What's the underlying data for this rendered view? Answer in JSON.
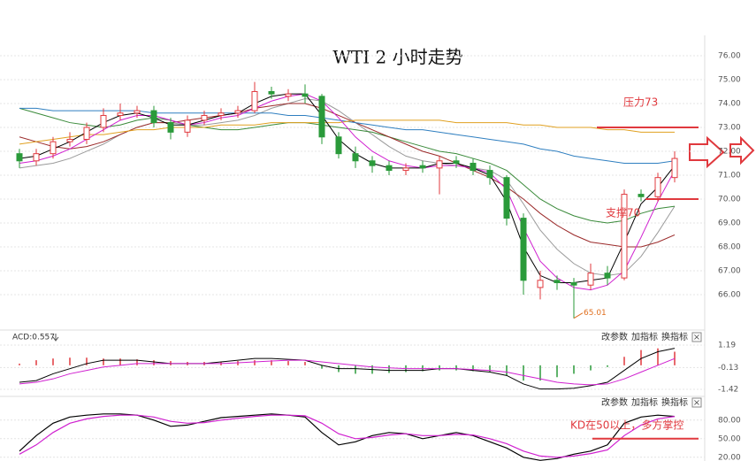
{
  "chart_data": [
    {
      "type": "candlestick",
      "title": "WTI 2 小时走势",
      "ylim": [
        64.63,
        76.85
      ],
      "yticks": [
        {
          "value": 66,
          "label": "66.00"
        },
        {
          "value": 67,
          "label": "67.00"
        },
        {
          "value": 68,
          "label": "68.00"
        },
        {
          "value": 69,
          "label": "69.00"
        },
        {
          "value": 70,
          "label": "70.00"
        },
        {
          "value": 71,
          "label": "71.00"
        },
        {
          "value": 72,
          "label": "72.00"
        },
        {
          "value": 73,
          "label": "73.00"
        },
        {
          "value": 74,
          "label": "74.00"
        },
        {
          "value": 75,
          "label": "75.00"
        },
        {
          "value": 76,
          "label": "76.00"
        }
      ],
      "grid": true,
      "up_color": "#e0393e",
      "down_color": "#2a9a3a",
      "open": [
        71.9,
        71.6,
        71.9,
        72.4,
        72.5,
        73.0,
        73.5,
        73.6,
        73.7,
        73.2,
        72.8,
        73.3,
        73.5,
        73.6,
        73.7,
        74.5,
        74.3,
        74.4,
        74.3,
        72.6,
        71.9,
        71.6,
        71.4,
        71.2,
        71.4,
        71.3,
        71.6,
        71.5,
        71.2,
        70.9,
        69.2,
        66.3,
        66.6,
        66.5,
        66.4,
        66.9,
        66.7,
        70.2,
        70.1,
        70.9
      ],
      "high": [
        72.1,
        72.1,
        72.6,
        72.8,
        73.2,
        73.8,
        74.0,
        73.9,
        73.9,
        73.4,
        73.5,
        73.7,
        73.8,
        73.9,
        74.9,
        74.7,
        74.6,
        74.8,
        74.4,
        72.8,
        72.2,
        71.8,
        71.6,
        71.5,
        71.6,
        71.8,
        71.8,
        71.7,
        71.4,
        71.0,
        69.4,
        67.0,
        66.8,
        66.7,
        67.3,
        67.2,
        70.4,
        70.4,
        71.1,
        72.0
      ],
      "low": [
        71.3,
        71.4,
        71.7,
        72.2,
        72.3,
        72.8,
        73.3,
        73.4,
        73.0,
        72.5,
        72.6,
        73.1,
        73.3,
        73.4,
        73.6,
        74.2,
        74.1,
        74.0,
        72.3,
        71.7,
        71.3,
        71.1,
        71.0,
        71.0,
        71.1,
        70.2,
        71.3,
        71.0,
        70.6,
        68.9,
        66.0,
        65.8,
        66.2,
        65.01,
        66.2,
        66.4,
        66.6,
        69.9,
        69.9,
        70.7
      ],
      "close": [
        71.6,
        71.9,
        72.4,
        72.5,
        73.0,
        73.5,
        73.6,
        73.7,
        73.2,
        72.8,
        73.3,
        73.5,
        73.6,
        73.7,
        74.5,
        74.4,
        74.4,
        74.3,
        72.6,
        71.9,
        71.6,
        71.4,
        71.2,
        71.3,
        71.3,
        71.6,
        71.5,
        71.2,
        70.9,
        69.2,
        66.6,
        66.6,
        66.5,
        66.4,
        66.9,
        66.7,
        70.2,
        70.1,
        70.9,
        71.7
      ],
      "lines": [
        {
          "color": "#9a9a9a",
          "values": [
            71.3,
            71.4,
            71.5,
            71.7,
            72.0,
            72.3,
            72.7,
            73.0,
            73.2,
            73.2,
            73.1,
            73.1,
            73.2,
            73.3,
            73.5,
            73.8,
            74.0,
            74.2,
            74.1,
            73.7,
            73.2,
            72.7,
            72.2,
            71.8,
            71.6,
            71.5,
            71.4,
            71.3,
            71.2,
            70.8,
            69.8,
            68.7,
            67.9,
            67.3,
            66.9,
            66.8,
            66.9,
            67.6,
            68.6,
            69.7
          ]
        },
        {
          "color": "#3a8a3a",
          "values": [
            73.8,
            73.6,
            73.4,
            73.2,
            73.1,
            73.0,
            73.1,
            73.3,
            73.4,
            73.3,
            73.1,
            73.0,
            72.9,
            72.9,
            73.0,
            73.1,
            73.2,
            73.2,
            73.1,
            73.0,
            72.9,
            72.8,
            72.6,
            72.4,
            72.2,
            72.0,
            71.9,
            71.7,
            71.5,
            71.2,
            70.6,
            70.0,
            69.6,
            69.3,
            69.1,
            69.0,
            69.1,
            69.4,
            69.6,
            69.7
          ]
        },
        {
          "color": "#9b2a2a",
          "values": [
            72.6,
            72.4,
            72.2,
            72.1,
            72.2,
            72.4,
            72.7,
            73.0,
            73.2,
            73.2,
            73.3,
            73.4,
            73.5,
            73.6,
            73.8,
            73.9,
            74.0,
            74.0,
            73.8,
            73.5,
            73.2,
            72.9,
            72.6,
            72.3,
            72.0,
            71.8,
            71.5,
            71.2,
            70.9,
            70.5,
            70.0,
            69.4,
            68.9,
            68.5,
            68.2,
            68.1,
            68.0,
            68.0,
            68.2,
            68.5
          ]
        },
        {
          "color": "#2f7fc0",
          "values": [
            73.8,
            73.8,
            73.7,
            73.7,
            73.7,
            73.7,
            73.7,
            73.7,
            73.6,
            73.6,
            73.6,
            73.6,
            73.6,
            73.6,
            73.6,
            73.6,
            73.5,
            73.5,
            73.4,
            73.3,
            73.2,
            73.1,
            73.0,
            72.9,
            72.9,
            72.8,
            72.7,
            72.6,
            72.5,
            72.4,
            72.3,
            72.1,
            72.0,
            71.8,
            71.7,
            71.6,
            71.5,
            71.5,
            71.5,
            71.6
          ]
        },
        {
          "color": "#e0a020",
          "values": [
            72.3,
            72.4,
            72.5,
            72.6,
            72.7,
            72.7,
            72.8,
            72.9,
            72.9,
            73.0,
            73.0,
            73.0,
            73.1,
            73.1,
            73.1,
            73.2,
            73.2,
            73.2,
            73.2,
            73.2,
            73.3,
            73.3,
            73.3,
            73.3,
            73.3,
            73.3,
            73.2,
            73.2,
            73.2,
            73.2,
            73.1,
            73.1,
            73.0,
            73.0,
            73.0,
            72.9,
            72.9,
            72.8,
            72.8,
            72.8
          ]
        },
        {
          "color": "#d020d0",
          "values": [
            71.5,
            71.6,
            71.8,
            72.1,
            72.5,
            72.9,
            73.3,
            73.5,
            73.5,
            73.3,
            73.1,
            73.2,
            73.4,
            73.5,
            73.8,
            74.1,
            74.3,
            74.4,
            74.1,
            73.4,
            72.6,
            72.0,
            71.6,
            71.4,
            71.3,
            71.4,
            71.4,
            71.3,
            71.1,
            70.4,
            68.8,
            67.4,
            66.7,
            66.3,
            66.2,
            66.4,
            67.0,
            68.4,
            69.9,
            71.2
          ]
        },
        {
          "color": "#000000",
          "values": [
            71.7,
            71.8,
            72.1,
            72.4,
            72.8,
            73.2,
            73.5,
            73.6,
            73.4,
            73.1,
            73.1,
            73.3,
            73.5,
            73.6,
            74.0,
            74.3,
            74.4,
            74.4,
            73.5,
            72.5,
            71.9,
            71.5,
            71.3,
            71.3,
            71.3,
            71.5,
            71.5,
            71.3,
            71.0,
            69.9,
            68.0,
            66.8,
            66.5,
            66.5,
            66.6,
            66.7,
            68.2,
            69.8,
            70.5,
            71.4
          ]
        }
      ],
      "annotations": [
        {
          "text": "压力73",
          "value": 73,
          "color": "#e0393e"
        },
        {
          "text": "支撑70",
          "value": 70,
          "color": "#e0393e"
        }
      ],
      "low_label": "65.01"
    },
    {
      "type": "macd",
      "label": "ACD:0.557",
      "buttons": [
        "改参数",
        "加指标",
        "换指标"
      ],
      "close_button": "×",
      "ylim": [
        -1.73,
        1.87
      ],
      "yticks": [
        1.19,
        -0.13,
        -1.42
      ],
      "grid": true,
      "up_color": "#e0393e",
      "down_color": "#2a9a3a",
      "histogram": [
        0.1,
        0.3,
        0.4,
        0.45,
        0.45,
        0.4,
        0.4,
        0.35,
        0.3,
        0.25,
        0.2,
        0.2,
        0.2,
        0.25,
        0.3,
        0.3,
        0.25,
        0.2,
        -0.2,
        -0.4,
        -0.5,
        -0.5,
        -0.45,
        -0.4,
        -0.35,
        -0.3,
        -0.3,
        -0.35,
        -0.4,
        -0.6,
        -0.9,
        -0.9,
        -0.7,
        -0.5,
        -0.3,
        -0.1,
        0.5,
        0.9,
        1.0,
        0.8
      ],
      "series": [
        {
          "color": "#000000",
          "values": [
            -1.0,
            -0.9,
            -0.5,
            -0.2,
            0.1,
            0.3,
            0.3,
            0.3,
            0.2,
            0.1,
            0.1,
            0.1,
            0.2,
            0.3,
            0.4,
            0.4,
            0.35,
            0.3,
            0.0,
            -0.2,
            -0.2,
            -0.25,
            -0.3,
            -0.3,
            -0.3,
            -0.2,
            -0.2,
            -0.3,
            -0.4,
            -0.6,
            -1.1,
            -1.4,
            -1.4,
            -1.35,
            -1.2,
            -1.0,
            -0.3,
            0.4,
            0.8,
            1.0
          ]
        },
        {
          "color": "#d020d0",
          "values": [
            -1.1,
            -1.0,
            -0.8,
            -0.5,
            -0.3,
            -0.1,
            0.0,
            0.1,
            0.1,
            0.1,
            0.1,
            0.1,
            0.1,
            0.15,
            0.2,
            0.25,
            0.3,
            0.3,
            0.2,
            0.1,
            0.0,
            -0.1,
            -0.15,
            -0.2,
            -0.2,
            -0.2,
            -0.2,
            -0.25,
            -0.3,
            -0.4,
            -0.6,
            -0.8,
            -1.0,
            -1.1,
            -1.15,
            -1.1,
            -0.8,
            -0.4,
            0.0,
            0.4
          ]
        }
      ]
    },
    {
      "type": "line",
      "buttons": [
        "改参数",
        "加指标",
        "换指标"
      ],
      "close_button": "×",
      "ylim": [
        14,
        114
      ],
      "yticks": [
        {
          "value": 80,
          "label": "80.00"
        },
        {
          "value": 50,
          "label": "50.00"
        },
        {
          "value": 20,
          "label": "20.00"
        }
      ],
      "grid": true,
      "series": [
        {
          "color": "#000000",
          "values": [
            30,
            55,
            75,
            85,
            88,
            90,
            90,
            88,
            80,
            70,
            72,
            78,
            84,
            86,
            88,
            90,
            88,
            85,
            60,
            40,
            45,
            55,
            60,
            58,
            50,
            55,
            60,
            55,
            45,
            35,
            20,
            15,
            18,
            25,
            30,
            40,
            75,
            85,
            88,
            86
          ]
        },
        {
          "color": "#d020d0",
          "values": [
            25,
            40,
            60,
            75,
            82,
            86,
            88,
            88,
            85,
            78,
            75,
            76,
            80,
            83,
            86,
            88,
            88,
            87,
            75,
            58,
            50,
            52,
            56,
            58,
            55,
            55,
            57,
            56,
            50,
            42,
            30,
            22,
            20,
            22,
            26,
            32,
            55,
            72,
            82,
            86
          ]
        }
      ],
      "annotations": [
        {
          "text": "KD在50以上，多方掌控",
          "value": 50,
          "color": "#e0393e"
        }
      ]
    }
  ]
}
